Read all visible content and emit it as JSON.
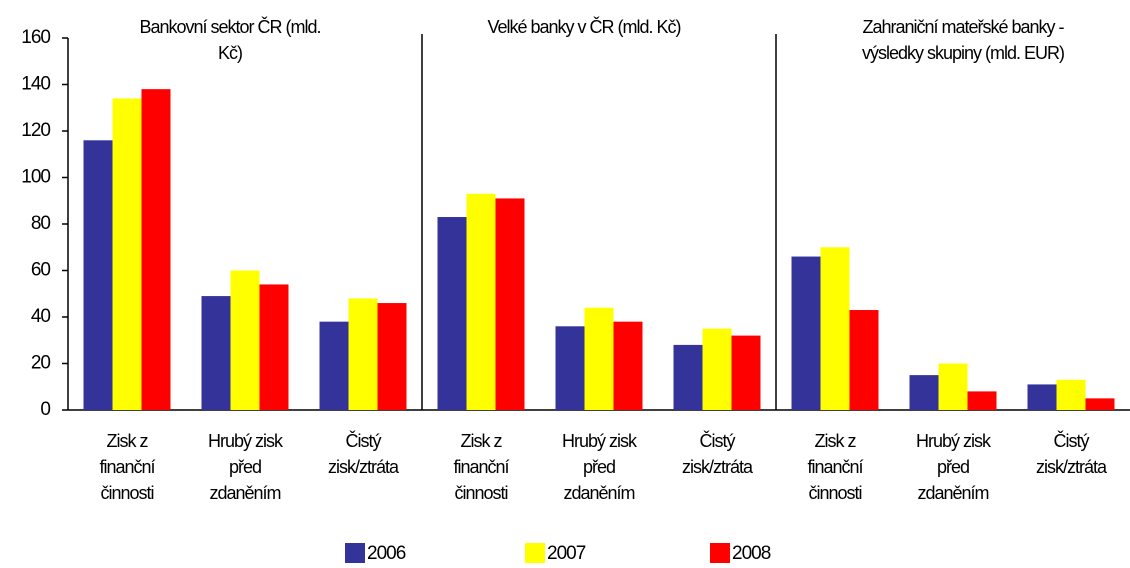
{
  "chart_data": {
    "type": "bar",
    "annotations": [
      "Bankovní sektor ČR (mld. Kč)",
      "Velké banky v ČR (mld. Kč)",
      "Zahraniční mateřské banky - výsledky skupiny (mld. EUR)"
    ],
    "categories": [
      "Zisk z finanční činnosti",
      "Hrubý zisk před zdaněním",
      "Čistý zisk/ztráta",
      "Zisk z finanční činnosti",
      "Hrubý zisk před zdaněním",
      "Čistý zisk/ztráta",
      "Zisk z finanční činnosti",
      "Hrubý zisk před zdaněním",
      "Čistý zisk/ztráta"
    ],
    "series": [
      {
        "name": "2006",
        "color": "#333399",
        "values": [
          116,
          49,
          38,
          83,
          36,
          28,
          66,
          15,
          11
        ]
      },
      {
        "name": "2007",
        "color": "#ffff00",
        "values": [
          134,
          60,
          48,
          93,
          44,
          35,
          70,
          20,
          13
        ]
      },
      {
        "name": "2008",
        "color": "#ff0000",
        "values": [
          138,
          54,
          46,
          91,
          38,
          32,
          43,
          8,
          5
        ]
      }
    ],
    "ylim": [
      0,
      160
    ],
    "yticks": [
      0,
      20,
      40,
      60,
      80,
      100,
      120,
      140,
      160
    ]
  }
}
